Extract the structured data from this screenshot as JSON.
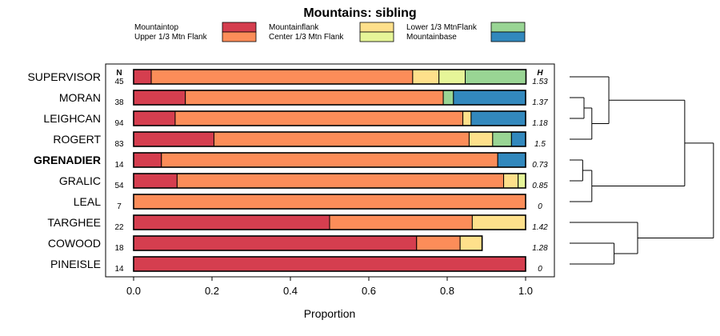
{
  "chart_data": {
    "type": "bar",
    "orientation": "horizontal",
    "stacked": true,
    "title": "Mountains: sibling",
    "xlabel": "Proportion",
    "ylabel": "",
    "xlim": [
      0,
      1
    ],
    "xticks": [
      "0.0",
      "0.2",
      "0.4",
      "0.6",
      "0.8",
      "1.0"
    ],
    "n_header": "N",
    "h_header": "H",
    "highlighted_category": "GRENADIER",
    "legend_placement": "top",
    "categories": [
      "SUPERVISOR",
      "MORAN",
      "LEIGHCAN",
      "ROGERT",
      "GRENADIER",
      "GRALIC",
      "LEAL",
      "TARGHEE",
      "COWOOD",
      "PINEISLE"
    ],
    "n": [
      "45",
      "38",
      "94",
      "83",
      "14",
      "54",
      "7",
      "22",
      "18",
      "14"
    ],
    "h": [
      "1.53",
      "1.37",
      "1.18",
      "1.5",
      "0.73",
      "0.85",
      "0",
      "1.42",
      "1.28",
      "0"
    ],
    "series": [
      {
        "name": "Mountaintop",
        "color": "#d53e4f",
        "values": [
          0.045,
          0.132,
          0.106,
          0.205,
          0.071,
          0.111,
          0,
          0.5,
          0.722,
          1
        ]
      },
      {
        "name": "Upper 1/3 Mtn Flank",
        "color": "#fc8d59",
        "values": [
          0.667,
          0.658,
          0.734,
          0.651,
          0.858,
          0.833,
          1,
          0.364,
          0.111,
          0
        ]
      },
      {
        "name": "Mountainflank",
        "color": "#fee08b",
        "values": [
          0.067,
          0,
          0.021,
          0.06,
          0,
          0.037,
          0,
          0.136,
          0.056,
          0
        ]
      },
      {
        "name": "Center 1/3 Mtn Flank",
        "color": "#e6f598",
        "values": [
          0.067,
          0,
          0,
          0,
          0,
          0.019,
          0,
          0,
          0,
          0
        ]
      },
      {
        "name": "Lower 1/3 MtnFlank",
        "color": "#99d594",
        "values": [
          0.155,
          0.026,
          0,
          0.048,
          0,
          0,
          0,
          0,
          0,
          0
        ]
      },
      {
        "name": "Mountainbase",
        "color": "#3288bd",
        "values": [
          0,
          0.184,
          0.139,
          0.036,
          0.071,
          0,
          0,
          0,
          0,
          0
        ]
      }
    ],
    "dendrogram": {
      "leaves": [
        "SUPERVISOR",
        "MORAN",
        "LEIGHCAN",
        "ROGERT",
        "GRENADIER",
        "GRALIC",
        "LEAL",
        "TARGHEE",
        "COWOOD",
        "PINEISLE"
      ],
      "merges": [
        {
          "a": "L1",
          "b": "L2",
          "height": 0.55
        },
        {
          "a": "M0",
          "b": "L3",
          "height": 0.85
        },
        {
          "a": "L0",
          "b": "M1",
          "height": 1.5
        },
        {
          "a": "L4",
          "b": "L5",
          "height": 0.5
        },
        {
          "a": "M3",
          "b": "L6",
          "height": 0.85
        },
        {
          "a": "M2",
          "b": "M4",
          "height": 4.4
        },
        {
          "a": "L8",
          "b": "L9",
          "height": 1.7
        },
        {
          "a": "L7",
          "b": "M6",
          "height": 2.6
        },
        {
          "a": "M5",
          "b": "M7",
          "height": 5.5
        }
      ]
    }
  }
}
